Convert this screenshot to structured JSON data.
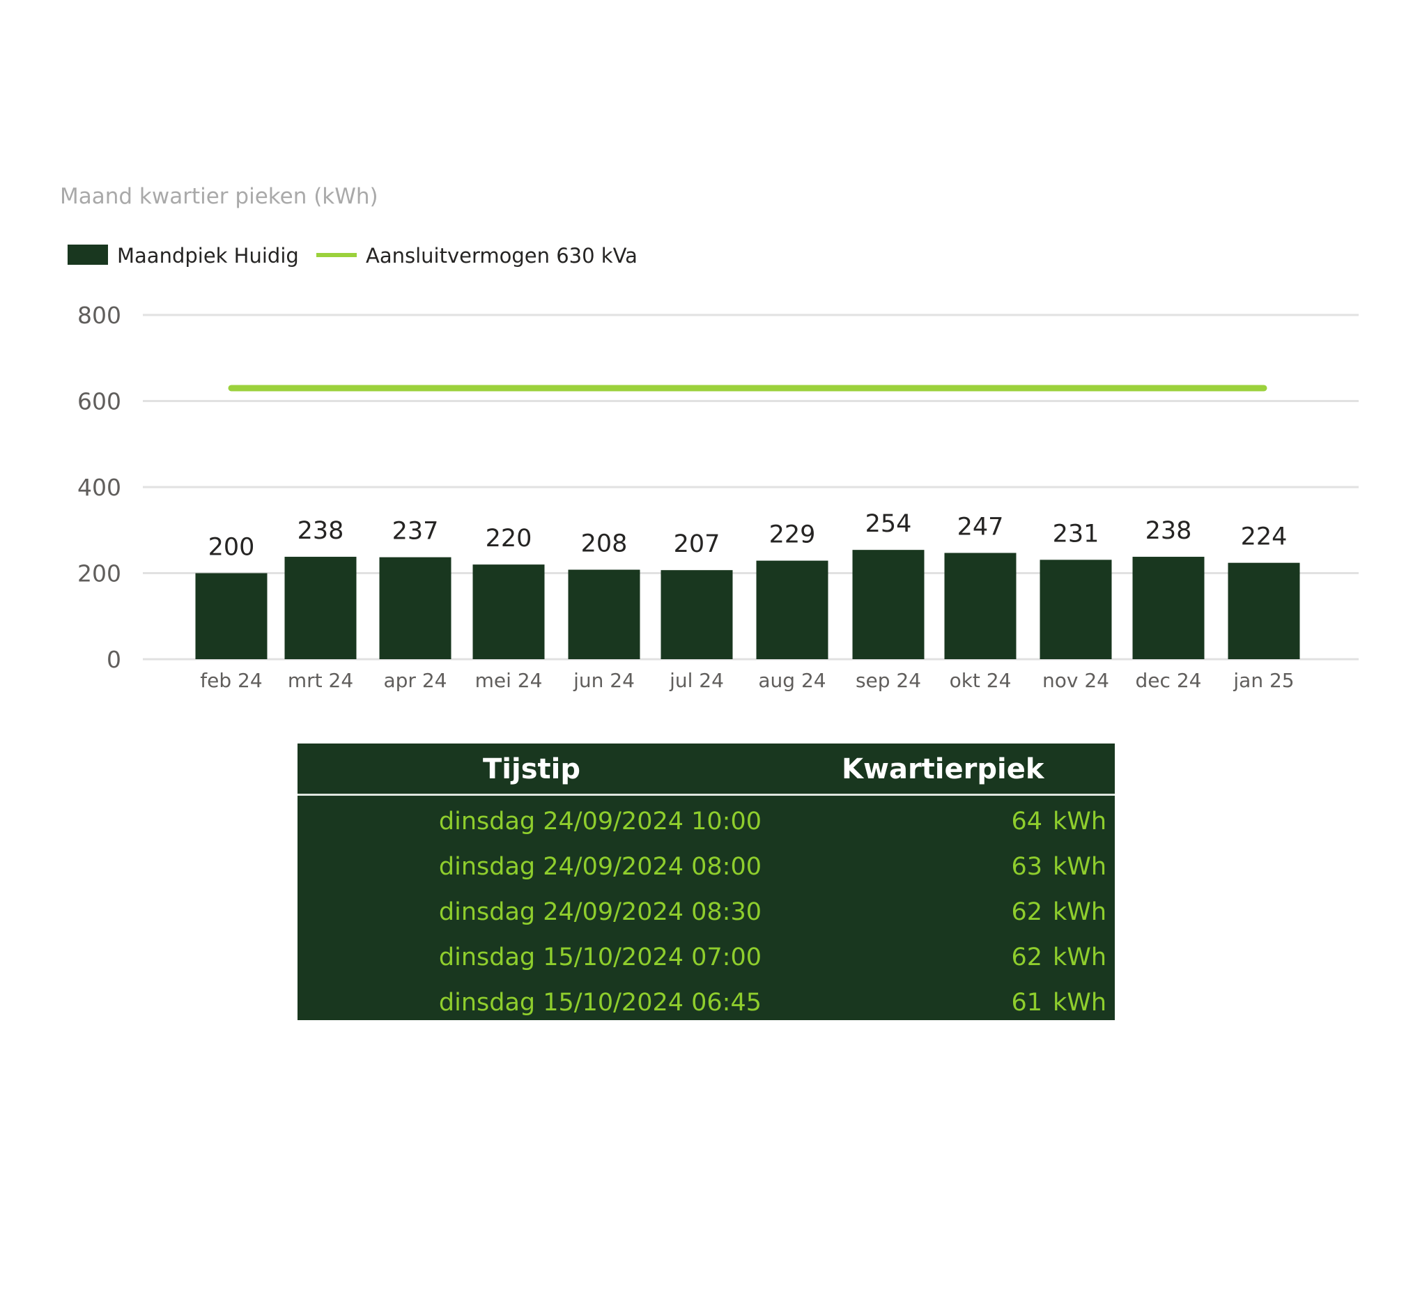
{
  "chart_data": {
    "type": "bar",
    "title": "Maand kwartier pieken (kWh)",
    "categories": [
      "feb 24",
      "mrt 24",
      "apr 24",
      "mei 24",
      "jun 24",
      "jul 24",
      "aug 24",
      "sep 24",
      "okt 24",
      "nov 24",
      "dec 24",
      "jan 25"
    ],
    "series": [
      {
        "name": "Maandpiek Huidig",
        "type": "bar",
        "color": "#19371f",
        "values": [
          200,
          238,
          237,
          220,
          208,
          207,
          229,
          254,
          247,
          231,
          238,
          224
        ]
      },
      {
        "name": "Aansluitvermogen 630 kVa",
        "type": "line",
        "color": "#9bd13c",
        "values": [
          630,
          630,
          630,
          630,
          630,
          630,
          630,
          630,
          630,
          630,
          630,
          630
        ]
      }
    ],
    "y_ticks": [
      0,
      200,
      400,
      600,
      800
    ],
    "ylim": [
      0,
      800
    ],
    "grid": true,
    "legend_position": "top-left",
    "data_labels": true
  },
  "table": {
    "headers": {
      "time": "Tijstip",
      "peak": "Kwartierpiek"
    },
    "rows": [
      {
        "time": "dinsdag 24/09/2024 10:00",
        "value": "64",
        "unit": "kWh"
      },
      {
        "time": "dinsdag 24/09/2024 08:00",
        "value": "63",
        "unit": "kWh"
      },
      {
        "time": "dinsdag 24/09/2024 08:30",
        "value": "62",
        "unit": "kWh"
      },
      {
        "time": "dinsdag 15/10/2024 07:00",
        "value": "62",
        "unit": "kWh"
      },
      {
        "time": "dinsdag 15/10/2024 06:45",
        "value": "61",
        "unit": "kWh"
      }
    ],
    "colors": {
      "background": "#19371f",
      "header_text": "#ffffff",
      "cell_text": "#8fce2d"
    }
  }
}
